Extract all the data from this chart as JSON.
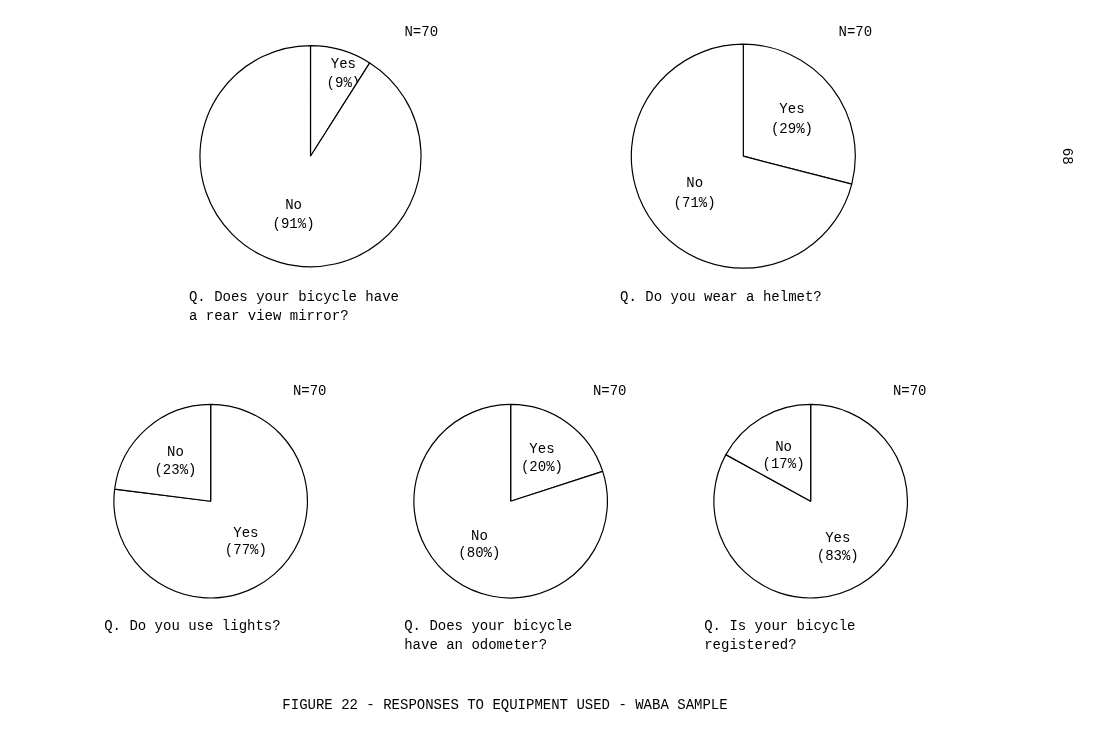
{
  "chart_data": [
    {
      "type": "pie",
      "title": "Q.  Does your bicycle have\n    a rear view mirror?",
      "categories": [
        "Yes",
        "No"
      ],
      "values": [
        9,
        91
      ],
      "value_labels": [
        "(9%)",
        "(91%)"
      ],
      "colors": [
        "#ffffff",
        "#ffffff"
      ],
      "annotations": [
        "N=70"
      ]
    },
    {
      "type": "pie",
      "title": "Q.  Do you wear a helmet?",
      "categories": [
        "Yes",
        "No"
      ],
      "values": [
        29,
        71
      ],
      "value_labels": [
        "(29%)",
        "(71%)"
      ],
      "colors": [
        "#ffffff",
        "#ffffff"
      ],
      "annotations": [
        "N=70",
        "68"
      ]
    },
    {
      "type": "pie",
      "title": "Q.  Do you use lights?",
      "categories": [
        "Yes",
        "No"
      ],
      "values": [
        77,
        23
      ],
      "value_labels": [
        "(77%)",
        "(23%)"
      ],
      "colors": [
        "#ffffff",
        "#ffffff"
      ],
      "annotations": [
        "N=70"
      ]
    },
    {
      "type": "pie",
      "title": "Q.  Does your bicycle\n    have an odometer?",
      "categories": [
        "Yes",
        "No"
      ],
      "values": [
        20,
        80
      ],
      "value_labels": [
        "(20%)",
        "(80%)"
      ],
      "colors": [
        "#ffffff",
        "#ffffff"
      ],
      "annotations": [
        "N=70"
      ]
    },
    {
      "type": "pie",
      "title": "Q.  Is your bicycle\n    registered?",
      "categories": [
        "Yes",
        "No"
      ],
      "values": [
        83,
        17
      ],
      "value_labels": [
        "(83%)",
        "(17%)"
      ],
      "colors": [
        "#ffffff",
        "#ffffff"
      ],
      "annotations": [
        "N=70",
        "FIGURE 22 - RESPONSES TO EQUIPMENT USED - WABA SAMPLE"
      ]
    }
  ]
}
